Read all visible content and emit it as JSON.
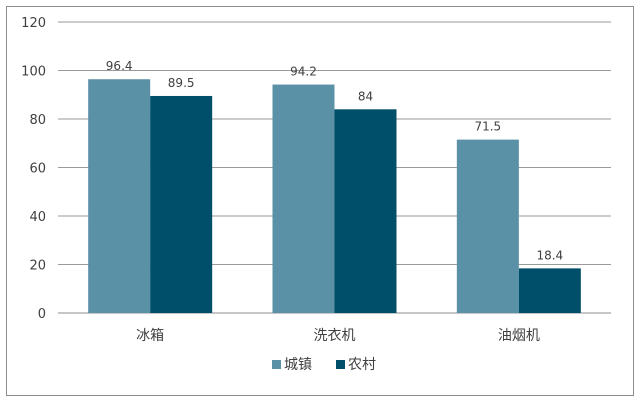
{
  "colors": {
    "series_1": "#5b91a7",
    "series_2": "#004f6a",
    "grid": "#9a9a9a",
    "axis": "#8c8c8c"
  },
  "chart_data": {
    "type": "bar",
    "categories": [
      "冰箱",
      "洗衣机",
      "油烟机"
    ],
    "series": [
      {
        "name": "城镇",
        "values": [
          96.4,
          94.2,
          71.5
        ],
        "labels": [
          "96.4",
          "94.2",
          "71.5"
        ]
      },
      {
        "name": "农村",
        "values": [
          89.5,
          84,
          18.4
        ],
        "labels": [
          "89.5",
          "84",
          "18.4"
        ]
      }
    ],
    "ylim": [
      0,
      120
    ],
    "yticks": [
      "0",
      "20",
      "40",
      "60",
      "80",
      "100",
      "120"
    ],
    "grid": true,
    "legend": "bottom",
    "title": "",
    "xlabel": "",
    "ylabel": ""
  }
}
